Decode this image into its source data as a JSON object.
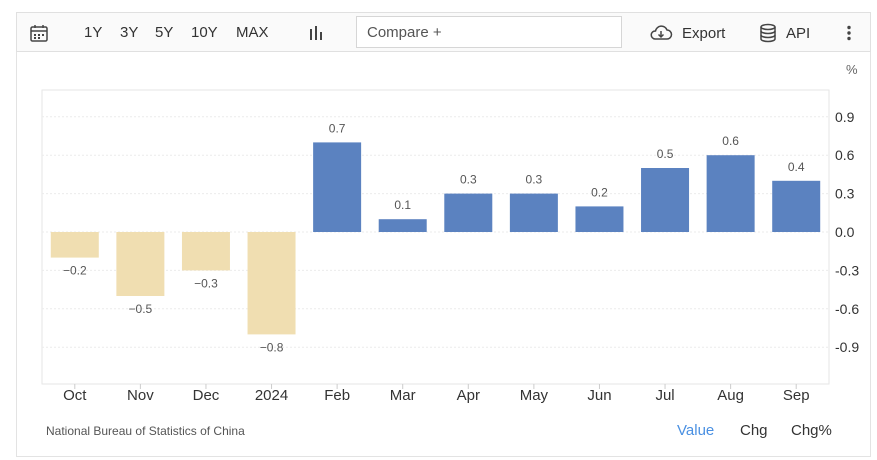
{
  "toolbar": {
    "ranges": [
      "1Y",
      "3Y",
      "5Y",
      "10Y",
      "MAX"
    ],
    "compare_placeholder": "Compare +",
    "export_label": "Export",
    "api_label": "API"
  },
  "chart": {
    "unit": "%",
    "source": "National Bureau of Statistics of China",
    "modes": [
      "Value",
      "Chg",
      "Chg%"
    ],
    "active_mode": "Value",
    "colors": {
      "positive": "#5b82c0",
      "negative": "#f0deb1"
    }
  },
  "chart_data": {
    "type": "bar",
    "categories": [
      "Oct",
      "Nov",
      "Dec",
      "2024",
      "Feb",
      "Mar",
      "Apr",
      "May",
      "Jun",
      "Jul",
      "Aug",
      "Sep"
    ],
    "values": [
      -0.2,
      -0.5,
      -0.3,
      -0.8,
      0.7,
      0.1,
      0.3,
      0.3,
      0.2,
      0.5,
      0.6,
      0.4
    ],
    "data_labels": [
      "−0.2",
      "−0.5",
      "−0.3",
      "−0.8",
      "0.7",
      "0.1",
      "0.3",
      "0.3",
      "0.2",
      "0.5",
      "0.6",
      "0.4"
    ],
    "y_ticks": [
      0.9,
      0.6,
      0.3,
      0.0,
      -0.3,
      -0.6,
      -0.9
    ],
    "y_tick_labels": [
      "0.9",
      "0.6",
      "0.3",
      "0.0",
      "-0.3",
      "-0.6",
      "-0.9"
    ],
    "ylim": [
      -1.2,
      1.1
    ],
    "grid": true,
    "y_axis_side": "right"
  }
}
